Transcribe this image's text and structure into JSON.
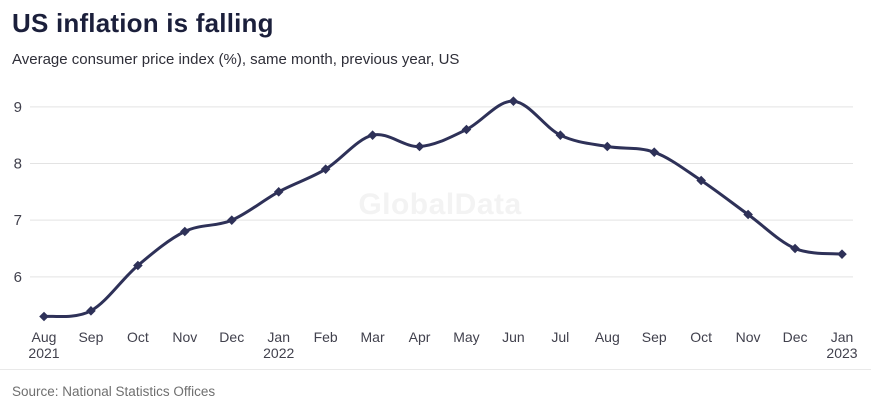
{
  "header": {
    "title": "US inflation is falling",
    "subtitle": "Average consumer price index (%), same month, previous year, US"
  },
  "watermark": "GlobalData",
  "footer": {
    "source": "Source: National Statistics Offices"
  },
  "colors": {
    "line": "#2e3158",
    "marker": "#2e3158",
    "grid": "#e3e3e3",
    "axis_text": "#41414d",
    "title_text": "#1b1f3b",
    "watermark_text": "#f3f3f3",
    "source_text": "#6f6f6f"
  },
  "chart_data": {
    "type": "line",
    "title": "US inflation is falling",
    "subtitle": "Average consumer price index (%), same month, previous year, US",
    "x_labels": [
      {
        "month": "Aug",
        "year": "2021"
      },
      {
        "month": "Sep"
      },
      {
        "month": "Oct"
      },
      {
        "month": "Nov"
      },
      {
        "month": "Dec"
      },
      {
        "month": "Jan",
        "year": "2022"
      },
      {
        "month": "Feb"
      },
      {
        "month": "Mar"
      },
      {
        "month": "Apr"
      },
      {
        "month": "May"
      },
      {
        "month": "Jun"
      },
      {
        "month": "Jul"
      },
      {
        "month": "Aug"
      },
      {
        "month": "Sep"
      },
      {
        "month": "Oct"
      },
      {
        "month": "Nov"
      },
      {
        "month": "Dec"
      },
      {
        "month": "Jan",
        "year": "2023"
      }
    ],
    "values": [
      5.3,
      5.4,
      6.2,
      6.8,
      7.0,
      7.5,
      7.9,
      8.5,
      8.3,
      8.6,
      9.1,
      8.5,
      8.3,
      8.2,
      7.7,
      7.1,
      6.5,
      6.4
    ],
    "ylabel": "",
    "xlabel": "",
    "yticks": [
      6,
      7,
      8,
      9
    ],
    "ylim": [
      5.15,
      9.35
    ],
    "grid": "horizontal",
    "legend": "none",
    "marker": "diamond",
    "source": "Source: National Statistics Offices"
  }
}
